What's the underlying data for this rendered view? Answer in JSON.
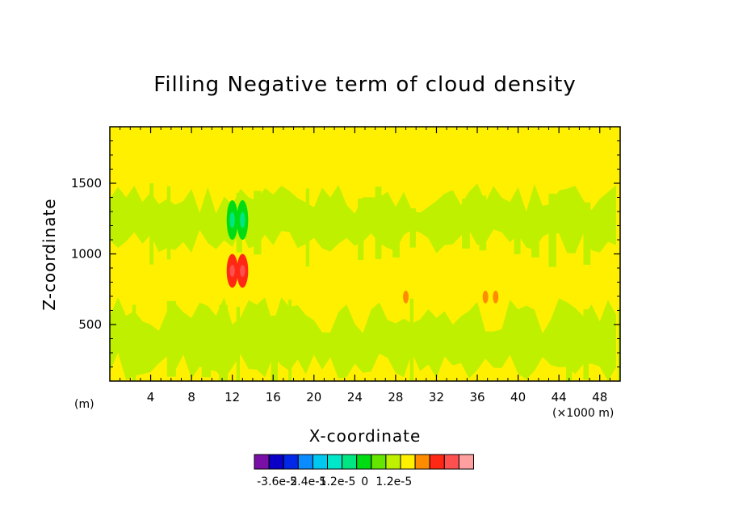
{
  "chart_data": {
    "type": "heatmap",
    "title": "Filling Negative term of cloud density",
    "xlabel": "X-coordinate",
    "ylabel": "Z-coordinate",
    "x_unit": "(×1000 m)",
    "y_unit": "(m)",
    "xlim": [
      0,
      50
    ],
    "ylim": [
      100,
      1900
    ],
    "x_ticks": [
      4,
      8,
      12,
      16,
      20,
      24,
      28,
      32,
      36,
      40,
      44,
      48
    ],
    "x_tick_labels": [
      "4",
      "8",
      "12",
      "16",
      "20",
      "24",
      "28",
      "32",
      "36",
      "40",
      "44",
      "48"
    ],
    "y_ticks": [
      500,
      1000,
      1500
    ],
    "y_tick_labels": [
      "500",
      "1000",
      "1500"
    ],
    "colorbar": {
      "colors": [
        "#7a0fa8",
        "#0a00c8",
        "#0028e6",
        "#0a8cff",
        "#00c8f0",
        "#00e6c8",
        "#00e682",
        "#00dc14",
        "#64e600",
        "#bef000",
        "#fff000",
        "#ff8c00",
        "#ff2814",
        "#ff5050",
        "#ffa0a0"
      ],
      "tick_labels": [
        "-3.6e-5",
        "-2.4e-5",
        "-1.2e-5",
        "0",
        "1.2e-5"
      ],
      "tick_positions": [
        1,
        3,
        5,
        7,
        9
      ]
    },
    "background_value_band": "#fff000",
    "regions": [
      {
        "kind": "band",
        "color": "#bef000",
        "z_range": [
          1000,
          1500
        ],
        "note": "ragged green band"
      },
      {
        "kind": "band",
        "color": "#bef000",
        "z_range": [
          100,
          700
        ],
        "note": "ragged green band"
      },
      {
        "kind": "blob",
        "color": "#00dc14",
        "x": 12,
        "z_range": [
          1100,
          1380
        ]
      },
      {
        "kind": "blob",
        "color": "#00dc14",
        "x": 13,
        "z_range": [
          1100,
          1380
        ]
      },
      {
        "kind": "blob",
        "color": "#ff2814",
        "x": 12,
        "z_range": [
          760,
          1000
        ]
      },
      {
        "kind": "blob",
        "color": "#ff2814",
        "x": 13,
        "z_range": [
          760,
          1000
        ]
      },
      {
        "kind": "blob",
        "color": "#ff8c00",
        "x": 29,
        "z_range": [
          650,
          740
        ]
      },
      {
        "kind": "blob",
        "color": "#ff8c00",
        "x": 36.8,
        "z_range": [
          650,
          740
        ]
      },
      {
        "kind": "blob",
        "color": "#ff8c00",
        "x": 37.8,
        "z_range": [
          650,
          740
        ]
      }
    ]
  }
}
